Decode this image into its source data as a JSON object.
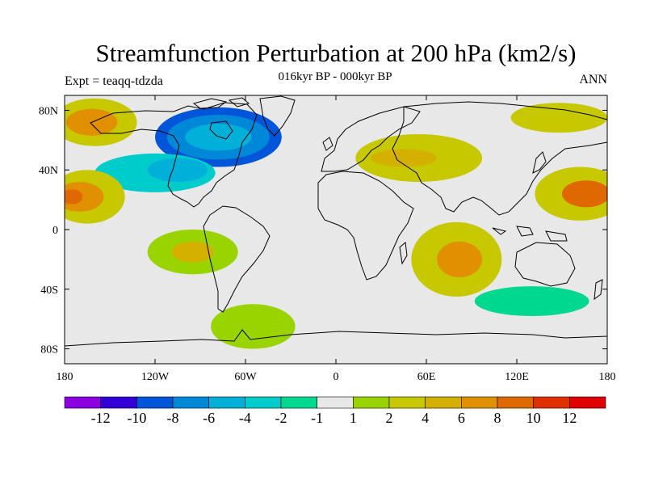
{
  "plot": {
    "title": "Streamfunction Perturbation at 200 hPa (km2/s)",
    "subtitle": "016kyr BP - 000kyr BP",
    "left_string": "Expt = teaqq-tdzda",
    "right_string": "ANN"
  },
  "colors": {
    "background": "#e8e8e8",
    "levels": [
      "#8a00e0",
      "#3300d8",
      "#0055d8",
      "#0088d8",
      "#00b0d8",
      "#00cccc",
      "#00d890",
      "#e8e8e8",
      "#99d400",
      "#c8c800",
      "#d4b000",
      "#e09000",
      "#e06800",
      "#e03000",
      "#e00000"
    ]
  },
  "chart_data": {
    "type": "contour-map",
    "projection": "cylindrical-equidistant",
    "variable": "Streamfunction Perturbation at 200 hPa",
    "units": "km2/s",
    "lon_range": [
      -180,
      180
    ],
    "lat_range": [
      -90,
      90
    ],
    "x_ticks": [
      {
        "lon": -180,
        "label": "180"
      },
      {
        "lon": -120,
        "label": "120W"
      },
      {
        "lon": -60,
        "label": "60W"
      },
      {
        "lon": 0,
        "label": "0"
      },
      {
        "lon": 60,
        "label": "60E"
      },
      {
        "lon": 120,
        "label": "120E"
      },
      {
        "lon": 180,
        "label": "180"
      }
    ],
    "y_ticks": [
      {
        "lat": 80,
        "label": "80N"
      },
      {
        "lat": 40,
        "label": "40N"
      },
      {
        "lat": 0,
        "label": "0"
      },
      {
        "lat": -40,
        "label": "40S"
      },
      {
        "lat": -80,
        "label": "80S"
      }
    ],
    "colorbar": {
      "level_labels": [
        "-12",
        "-10",
        "-8",
        "-6",
        "-4",
        "-2",
        "-1",
        "1",
        "2",
        "4",
        "6",
        "8",
        "10",
        "12"
      ]
    },
    "fields": [
      {
        "name": "north-atlantic-low",
        "lon": -78,
        "lat": 62,
        "rlon": 42,
        "rlat": 20,
        "level": 2
      },
      {
        "name": "north-atlantic-low",
        "lon": -78,
        "lat": 62,
        "rlon": 34,
        "rlat": 15,
        "level": 3
      },
      {
        "name": "north-atlantic-low",
        "lon": -78,
        "lat": 62,
        "rlon": 22,
        "rlat": 9,
        "level": 4
      },
      {
        "name": "north-pacific-east-low",
        "lon": -120,
        "lat": 38,
        "rlon": 40,
        "rlat": 13,
        "level": 5
      },
      {
        "name": "north-pacific-east-low",
        "lon": -105,
        "lat": 40,
        "rlon": 20,
        "rlat": 8,
        "level": 4
      },
      {
        "name": "north-pacific-high",
        "lon": -165,
        "lat": 22,
        "rlon": 25,
        "rlat": 18,
        "level": 9
      },
      {
        "name": "north-pacific-high",
        "lon": -170,
        "lat": 22,
        "rlon": 16,
        "rlat": 10,
        "level": 11
      },
      {
        "name": "north-pacific-high",
        "lon": -175,
        "lat": 22,
        "rlon": 7,
        "rlat": 5,
        "level": 12
      },
      {
        "name": "alaska-high",
        "lon": -160,
        "lat": 72,
        "rlon": 28,
        "rlat": 16,
        "level": 9
      },
      {
        "name": "alaska-high",
        "lon": -162,
        "lat": 72,
        "rlon": 17,
        "rlat": 9,
        "level": 11
      },
      {
        "name": "eurasia-high",
        "lon": 55,
        "lat": 48,
        "rlon": 42,
        "rlat": 16,
        "level": 9
      },
      {
        "name": "eurasia-high",
        "lon": 45,
        "lat": 48,
        "rlon": 22,
        "rlat": 6,
        "level": 10
      },
      {
        "name": "arctic-russia-high",
        "lon": 148,
        "lat": 75,
        "rlon": 32,
        "rlat": 10,
        "level": 9
      },
      {
        "name": "west-pacific-high",
        "lon": 162,
        "lat": 24,
        "rlon": 30,
        "rlat": 18,
        "level": 9
      },
      {
        "name": "west-pacific-high",
        "lon": 166,
        "lat": 24,
        "rlon": 16,
        "rlat": 9,
        "level": 12
      },
      {
        "name": "south-indian-high",
        "lon": 80,
        "lat": -20,
        "rlon": 30,
        "rlat": 25,
        "level": 9
      },
      {
        "name": "south-indian-high",
        "lon": 82,
        "lat": -20,
        "rlon": 15,
        "rlat": 12,
        "level": 11
      },
      {
        "name": "south-america-high",
        "lon": -95,
        "lat": -15,
        "rlon": 30,
        "rlat": 15,
        "level": 8
      },
      {
        "name": "south-america-high",
        "lon": -95,
        "lat": -15,
        "rlon": 14,
        "rlat": 7,
        "level": 10
      },
      {
        "name": "southern-ocean-low",
        "lon": 130,
        "lat": -48,
        "rlon": 38,
        "rlat": 10,
        "level": 6
      },
      {
        "name": "southern-ocean-high",
        "lon": -55,
        "lat": -65,
        "rlon": 28,
        "rlat": 15,
        "level": 8
      }
    ]
  }
}
